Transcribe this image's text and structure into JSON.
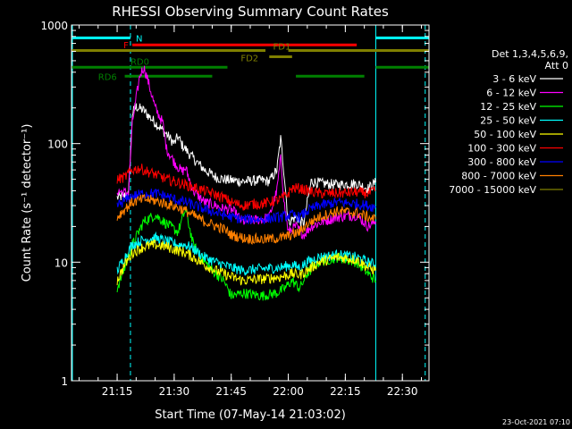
{
  "chart_data": {
    "type": "line",
    "title": "RHESSI Observing Summary Count Rates",
    "xlabel": "Start Time (07-May-14 21:03:02)",
    "ylabel": "Count Rate (s⁻¹ detector⁻¹)",
    "xlim": [
      0,
      94
    ],
    "ylim": [
      1,
      1000
    ],
    "yscale": "log",
    "x_unit": "minutes after 21:03:02",
    "xticks": [
      {
        "t": 12,
        "label": "21:15"
      },
      {
        "t": 27,
        "label": "21:30"
      },
      {
        "t": 42,
        "label": "21:45"
      },
      {
        "t": 57,
        "label": "22:00"
      },
      {
        "t": 72,
        "label": "22:15"
      },
      {
        "t": 87,
        "label": "22:30"
      }
    ],
    "yticks": [
      {
        "v": 1,
        "label": "1"
      },
      {
        "v": 10,
        "label": "10"
      },
      {
        "v": 100,
        "label": "100"
      },
      {
        "v": 1000,
        "label": "1000"
      }
    ],
    "legend": {
      "position": "right",
      "header": [
        "Det 1,3,4,5,6,9,",
        "Att 0"
      ]
    },
    "series": [
      {
        "name": "3 - 6 keV",
        "color": "#ffffff",
        "points": [
          [
            12,
            35
          ],
          [
            15,
            37
          ],
          [
            16,
            180
          ],
          [
            17,
            205
          ],
          [
            19,
            190
          ],
          [
            22,
            150
          ],
          [
            25,
            120
          ],
          [
            27,
            100
          ],
          [
            28,
            115
          ],
          [
            29,
            98
          ],
          [
            32,
            75
          ],
          [
            35,
            60
          ],
          [
            38,
            52
          ],
          [
            40,
            50
          ],
          [
            42,
            49
          ],
          [
            45,
            48
          ],
          [
            50,
            49
          ],
          [
            52,
            48
          ],
          [
            54,
            60
          ],
          [
            55,
            110
          ],
          [
            56,
            52
          ],
          [
            57,
            22
          ],
          [
            59,
            24
          ],
          [
            61,
            21
          ],
          [
            63,
            48
          ],
          [
            66,
            46
          ],
          [
            70,
            45
          ],
          [
            75,
            46
          ],
          [
            78,
            42
          ],
          [
            80,
            47
          ]
        ]
      },
      {
        "name": "6 - 12 keV",
        "color": "#ff00ff",
        "points": [
          [
            12,
            40
          ],
          [
            15,
            38
          ],
          [
            16,
            150
          ],
          [
            18,
            380
          ],
          [
            19,
            440
          ],
          [
            20,
            350
          ],
          [
            22,
            200
          ],
          [
            24,
            150
          ],
          [
            25,
            90
          ],
          [
            27,
            70
          ],
          [
            29,
            58
          ],
          [
            30,
            62
          ],
          [
            32,
            40
          ],
          [
            35,
            32
          ],
          [
            38,
            30
          ],
          [
            40,
            28
          ],
          [
            42,
            28
          ],
          [
            45,
            22
          ],
          [
            50,
            23
          ],
          [
            52,
            24
          ],
          [
            54,
            40
          ],
          [
            55,
            75
          ],
          [
            56,
            30
          ],
          [
            57,
            18
          ],
          [
            59,
            20
          ],
          [
            61,
            17
          ],
          [
            63,
            20
          ],
          [
            66,
            22
          ],
          [
            70,
            24
          ],
          [
            75,
            25
          ],
          [
            78,
            20
          ],
          [
            80,
            22
          ]
        ]
      },
      {
        "name": "12 - 25 keV",
        "color": "#00ff00",
        "points": [
          [
            12,
            6
          ],
          [
            14,
            9
          ],
          [
            16,
            14
          ],
          [
            19,
            22
          ],
          [
            22,
            25
          ],
          [
            25,
            21
          ],
          [
            28,
            18
          ],
          [
            30,
            28
          ],
          [
            32,
            14
          ],
          [
            35,
            10
          ],
          [
            38,
            8
          ],
          [
            40,
            7
          ],
          [
            42,
            5.2
          ],
          [
            45,
            5.5
          ],
          [
            50,
            5.2
          ],
          [
            54,
            5.5
          ],
          [
            56,
            6
          ],
          [
            58,
            7
          ],
          [
            60,
            6
          ],
          [
            62,
            8
          ],
          [
            65,
            10
          ],
          [
            70,
            11
          ],
          [
            75,
            10
          ],
          [
            78,
            8
          ],
          [
            80,
            7
          ]
        ]
      },
      {
        "name": "25 - 50 keV",
        "color": "#00ffff",
        "points": [
          [
            12,
            8.5
          ],
          [
            14,
            11
          ],
          [
            16,
            14
          ],
          [
            19,
            15.5
          ],
          [
            22,
            16
          ],
          [
            25,
            15
          ],
          [
            28,
            14
          ],
          [
            30,
            14
          ],
          [
            32,
            13
          ],
          [
            35,
            11
          ],
          [
            38,
            10
          ],
          [
            40,
            9.5
          ],
          [
            42,
            9
          ],
          [
            45,
            8.5
          ],
          [
            50,
            8.8
          ],
          [
            55,
            9
          ],
          [
            58,
            9.5
          ],
          [
            60,
            9
          ],
          [
            62,
            10
          ],
          [
            65,
            11
          ],
          [
            70,
            11.5
          ],
          [
            75,
            11
          ],
          [
            78,
            10
          ],
          [
            80,
            9.5
          ]
        ]
      },
      {
        "name": "50 - 100 keV",
        "color": "#ffff00",
        "points": [
          [
            12,
            7
          ],
          [
            14,
            9.5
          ],
          [
            16,
            12
          ],
          [
            19,
            13.5
          ],
          [
            22,
            14
          ],
          [
            25,
            13.5
          ],
          [
            28,
            12.5
          ],
          [
            30,
            12
          ],
          [
            32,
            11
          ],
          [
            35,
            9.5
          ],
          [
            38,
            8.5
          ],
          [
            40,
            8
          ],
          [
            42,
            7.5
          ],
          [
            45,
            7
          ],
          [
            50,
            7.2
          ],
          [
            55,
            7.5
          ],
          [
            58,
            8
          ],
          [
            60,
            7.8
          ],
          [
            62,
            8.5
          ],
          [
            65,
            10
          ],
          [
            70,
            11
          ],
          [
            75,
            10.5
          ],
          [
            78,
            9
          ],
          [
            80,
            8.5
          ]
        ]
      },
      {
        "name": "100 - 300 keV",
        "color": "#ff0000",
        "points": [
          [
            12,
            50
          ],
          [
            14,
            52
          ],
          [
            16,
            60
          ],
          [
            18,
            62
          ],
          [
            20,
            58
          ],
          [
            22,
            55
          ],
          [
            25,
            50
          ],
          [
            30,
            45
          ],
          [
            35,
            40
          ],
          [
            40,
            35
          ],
          [
            42,
            32
          ],
          [
            45,
            30
          ],
          [
            48,
            31
          ],
          [
            50,
            31
          ],
          [
            52,
            32
          ],
          [
            55,
            34
          ],
          [
            57,
            38
          ],
          [
            58,
            42
          ],
          [
            60,
            42
          ],
          [
            62,
            40
          ],
          [
            65,
            38
          ],
          [
            70,
            38
          ],
          [
            75,
            39
          ],
          [
            78,
            38
          ],
          [
            80,
            40
          ]
        ]
      },
      {
        "name": "300 - 800 keV",
        "color": "#0000ff",
        "points": [
          [
            12,
            30
          ],
          [
            14,
            33
          ],
          [
            16,
            36
          ],
          [
            19,
            38
          ],
          [
            22,
            38
          ],
          [
            25,
            36
          ],
          [
            28,
            33
          ],
          [
            30,
            32
          ],
          [
            35,
            28
          ],
          [
            40,
            25
          ],
          [
            42,
            24
          ],
          [
            45,
            23
          ],
          [
            50,
            23
          ],
          [
            55,
            24
          ],
          [
            58,
            25
          ],
          [
            60,
            24
          ],
          [
            62,
            27
          ],
          [
            65,
            30
          ],
          [
            70,
            32
          ],
          [
            75,
            31
          ],
          [
            78,
            30
          ],
          [
            80,
            29
          ]
        ]
      },
      {
        "name": "800 - 7000 keV",
        "color": "#ff8000",
        "points": [
          [
            12,
            24
          ],
          [
            14,
            28
          ],
          [
            16,
            32
          ],
          [
            19,
            34
          ],
          [
            22,
            33
          ],
          [
            25,
            31
          ],
          [
            28,
            29
          ],
          [
            30,
            27
          ],
          [
            35,
            22
          ],
          [
            40,
            19
          ],
          [
            42,
            17
          ],
          [
            45,
            16
          ],
          [
            50,
            15.5
          ],
          [
            55,
            16
          ],
          [
            58,
            17
          ],
          [
            60,
            18
          ],
          [
            62,
            21
          ],
          [
            65,
            24
          ],
          [
            70,
            27
          ],
          [
            75,
            26
          ],
          [
            78,
            24
          ],
          [
            80,
            23
          ]
        ]
      },
      {
        "name": "7000 - 15000 keV",
        "color": "#808000",
        "points": []
      }
    ],
    "state_bars": [
      {
        "label": "N",
        "color": "#00ffff",
        "value": 780,
        "segments": [
          [
            0,
            15.5
          ],
          [
            80,
            94
          ]
        ]
      },
      {
        "label": "F",
        "color": "#ff0000",
        "value": 680,
        "segments": [
          [
            16,
            75
          ]
        ]
      },
      {
        "label": "FD1",
        "color": "#808000",
        "value": 610,
        "segments": [
          [
            0,
            51
          ],
          [
            57,
            94
          ]
        ]
      },
      {
        "label": "FD2",
        "color": "#808000",
        "value": 540,
        "segments": [
          [
            52,
            58
          ]
        ]
      },
      {
        "label": "RD0",
        "color": "#008000",
        "value": 440,
        "segments": [
          [
            0,
            41
          ],
          [
            80,
            94
          ]
        ]
      },
      {
        "label": "RD6",
        "color": "#008000",
        "value": 370,
        "segments": [
          [
            14,
            37
          ],
          [
            59,
            77
          ]
        ]
      }
    ],
    "vlines": [
      {
        "t": 0,
        "color": "#00ffff",
        "style": "solid"
      },
      {
        "t": 15.5,
        "color": "#00ffff",
        "style": "dashed"
      },
      {
        "t": 80,
        "color": "#00ffff",
        "style": "solid"
      },
      {
        "t": 93,
        "color": "#00ffff",
        "style": "dashed"
      }
    ],
    "timestamp": "23-Oct-2021 07:10"
  }
}
